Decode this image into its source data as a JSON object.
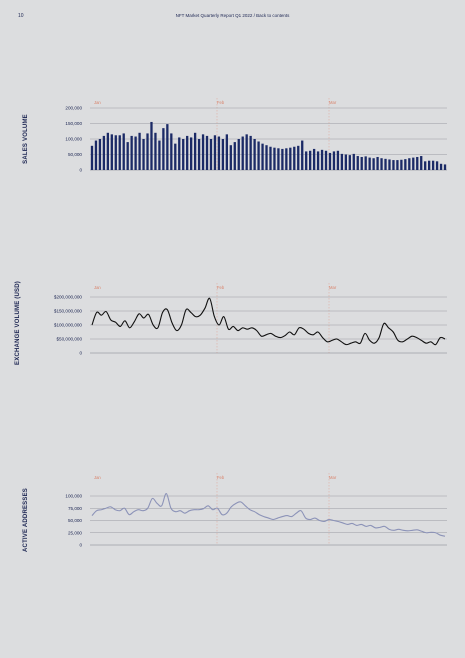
{
  "header": {
    "page_number": "10",
    "title": "NFT Market Quarterly Report Q1 2022 / Back to contents"
  },
  "months": [
    "Jan",
    "Feb",
    "Mar"
  ],
  "chart_data": [
    {
      "type": "bar",
      "ylabel": "SALES VOLUME",
      "ylim": [
        0,
        200000
      ],
      "yticks": [
        "0",
        "50,000",
        "100,000",
        "150,000",
        "200,000"
      ],
      "color": "#1b2a66",
      "values": [
        78000,
        95000,
        100000,
        110000,
        120000,
        115000,
        112000,
        112000,
        118000,
        90000,
        110000,
        108000,
        120000,
        100000,
        118000,
        155000,
        120000,
        95000,
        135000,
        148000,
        118000,
        85000,
        105000,
        100000,
        110000,
        105000,
        120000,
        100000,
        115000,
        110000,
        100000,
        112000,
        108000,
        100000,
        115000,
        80000,
        90000,
        100000,
        108000,
        115000,
        110000,
        100000,
        92000,
        85000,
        80000,
        75000,
        72000,
        70000,
        68000,
        70000,
        72000,
        75000,
        78000,
        95000,
        60000,
        62000,
        68000,
        60000,
        65000,
        62000,
        55000,
        60000,
        62000,
        52000,
        50000,
        48000,
        52000,
        45000,
        42000,
        44000,
        40000,
        38000,
        42000,
        38000,
        36000,
        34000,
        32000,
        32000,
        33000,
        35000,
        38000,
        40000,
        42000,
        45000,
        28000,
        30000,
        30000,
        28000,
        20000,
        18000
      ]
    },
    {
      "type": "line",
      "ylabel": "EXCHANGE VOLUME (USD)",
      "ylim": [
        0,
        200000000
      ],
      "yticks": [
        "0",
        "$50,000,000",
        "$100,000,000",
        "$150,000,000",
        "$200,000,000"
      ],
      "color": "#111111",
      "values": [
        100000000,
        145000000,
        135000000,
        148000000,
        118000000,
        110000000,
        95000000,
        115000000,
        90000000,
        112000000,
        140000000,
        125000000,
        138000000,
        100000000,
        90000000,
        145000000,
        155000000,
        108000000,
        80000000,
        100000000,
        155000000,
        145000000,
        130000000,
        135000000,
        160000000,
        195000000,
        130000000,
        100000000,
        130000000,
        85000000,
        95000000,
        80000000,
        90000000,
        85000000,
        90000000,
        80000000,
        60000000,
        65000000,
        70000000,
        60000000,
        55000000,
        62000000,
        75000000,
        65000000,
        90000000,
        85000000,
        70000000,
        65000000,
        75000000,
        55000000,
        40000000,
        45000000,
        50000000,
        40000000,
        30000000,
        35000000,
        40000000,
        35000000,
        70000000,
        45000000,
        35000000,
        55000000,
        105000000,
        90000000,
        75000000,
        45000000,
        40000000,
        50000000,
        60000000,
        55000000,
        45000000,
        35000000,
        40000000,
        30000000,
        55000000,
        50000000
      ]
    },
    {
      "type": "line",
      "ylabel": "ACTIVE ADDRESSES",
      "ylim": [
        0,
        100000
      ],
      "yticks": [
        "0",
        "25,000",
        "50,000",
        "75,000",
        "100,000"
      ],
      "color": "#8c93b8",
      "values": [
        60000,
        70000,
        72000,
        75000,
        78000,
        72000,
        70000,
        75000,
        62000,
        68000,
        72000,
        70000,
        75000,
        95000,
        85000,
        80000,
        105000,
        75000,
        68000,
        70000,
        65000,
        70000,
        72000,
        72000,
        74000,
        80000,
        72000,
        75000,
        62000,
        65000,
        78000,
        85000,
        88000,
        80000,
        72000,
        68000,
        62000,
        58000,
        55000,
        52000,
        55000,
        58000,
        60000,
        58000,
        65000,
        70000,
        55000,
        52000,
        55000,
        50000,
        48000,
        52000,
        50000,
        48000,
        45000,
        42000,
        44000,
        40000,
        42000,
        38000,
        40000,
        35000,
        36000,
        38000,
        32000,
        30000,
        32000,
        30000,
        29000,
        30000,
        31000,
        28000,
        25000,
        26000,
        25000,
        20000,
        18000
      ]
    }
  ]
}
